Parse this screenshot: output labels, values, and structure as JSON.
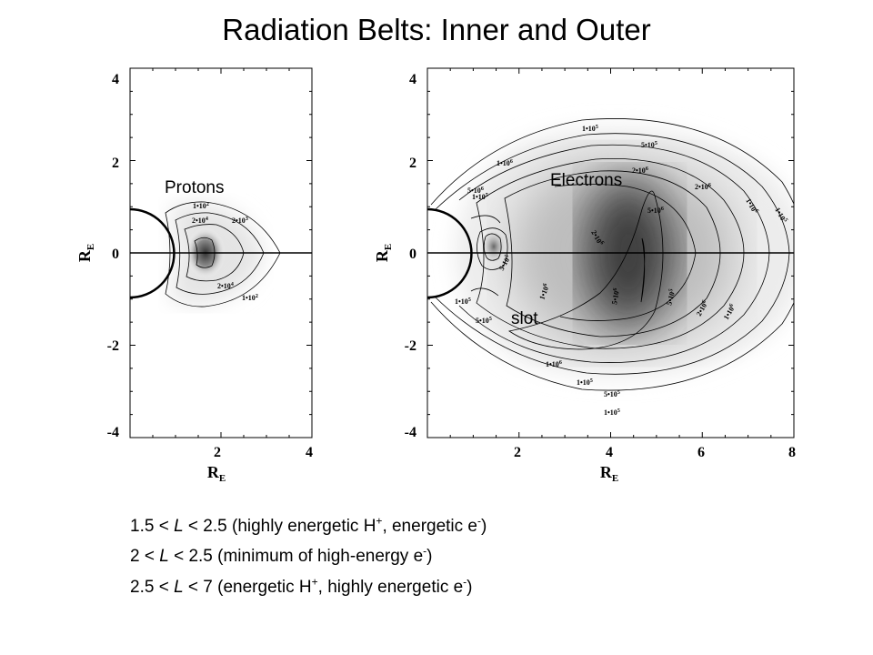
{
  "title": "Radiation Belts: Inner and Outer",
  "axis_label": "R",
  "axis_label_subscript": "E",
  "left_panel": {
    "yticks": [
      "4",
      "2",
      "0",
      "-2",
      "-4"
    ],
    "xticks": [
      "2",
      "4"
    ],
    "region_label": "Protons",
    "contour_labels": [
      "1•10",
      "2",
      "2•10",
      "4",
      "2•10",
      "3",
      "2•10",
      "4",
      "1•10",
      "2"
    ]
  },
  "right_panel": {
    "yticks": [
      "4",
      "2",
      "0",
      "-2",
      "-4"
    ],
    "xticks": [
      "2",
      "4",
      "6",
      "8"
    ],
    "region_label": "Electrons",
    "slot_label": "slot",
    "contour_labels": [
      "1•10",
      "5",
      "5•10",
      "5",
      "2•10",
      "6",
      "1•10",
      "6",
      "1•10",
      "5",
      "5•10",
      "6",
      "2•10",
      "6",
      "5•10",
      "6",
      "2•10",
      "6",
      "1•10",
      "6",
      "1•10",
      "5",
      "5•10",
      "5",
      "1•10",
      "5",
      "5•10",
      "5",
      "1•10",
      "6",
      "5•10",
      "6",
      "2•10",
      "6",
      "1•10",
      "6",
      "5•10",
      "5",
      "1•10",
      "5",
      "5•10",
      "5",
      "1•10",
      "5"
    ]
  },
  "bullets": [
    {
      "a": "1.5 < ",
      "b": "L",
      "c": " < 2.5 (highly energetic H",
      "d": "+",
      "e": ", energetic e",
      "f": "-",
      "g": ")"
    },
    {
      "a": "2 < ",
      "b": "L",
      "c": " < 2.5 (minimum of high-energy e",
      "d": "-",
      "e": ")",
      "f": "",
      "g": ""
    },
    {
      "a": "2.5 < ",
      "b": "L",
      "c": " < 7 (energetic H",
      "d": "+",
      "e": ", highly energetic e",
      "f": "-",
      "g": ")"
    }
  ]
}
